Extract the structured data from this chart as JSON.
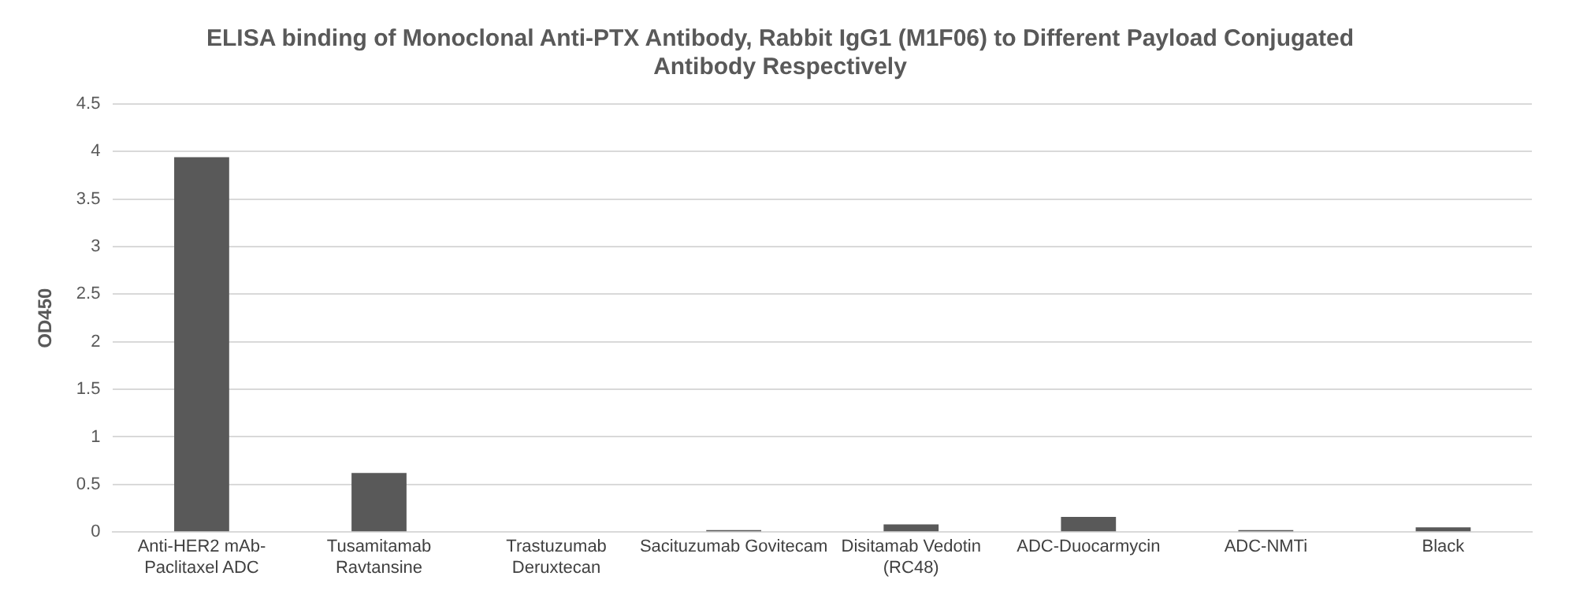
{
  "chart_data": {
    "type": "bar",
    "title": "ELISA binding of Monoclonal Anti-PTX Antibody, Rabbit IgG1 (M1F06) to Different Payload Conjugated Antibody Respectively",
    "ylabel": "OD450",
    "categories": [
      "Anti-HER2 mAb-Paclitaxel ADC",
      "Tusamitamab Ravtansine",
      "Trastuzumab Deruxtecan",
      "Sacituzumab Govitecam",
      "Disitamab Vedotin (RC48)",
      "ADC-Duocarmycin",
      "ADC-NMTi",
      "Black"
    ],
    "values": [
      3.94,
      0.62,
      0,
      0.02,
      0.08,
      0.16,
      0.02,
      0.05
    ],
    "color": "#595959",
    "ylim": [
      0,
      4.5
    ],
    "yticks": [
      0,
      0.5,
      1,
      1.5,
      2,
      2.5,
      3,
      3.5,
      4,
      4.5
    ],
    "grid": "y"
  }
}
